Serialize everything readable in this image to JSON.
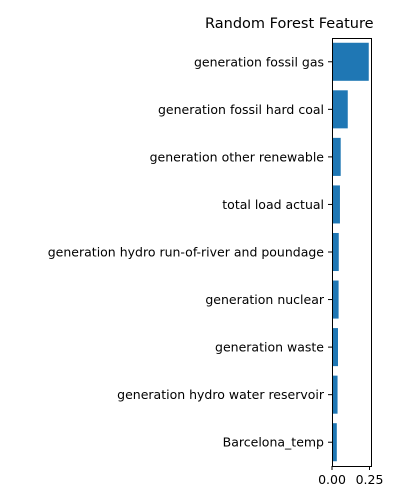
{
  "chart_data": {
    "type": "bar",
    "orientation": "horizontal",
    "title": "Random Forest Feature",
    "xlabel": "",
    "ylabel": "",
    "categories": [
      "generation fossil gas",
      "generation fossil hard coal",
      "generation other renewable",
      "total load actual",
      "generation hydro run-of-river and poundage",
      "generation nuclear",
      "generation waste",
      "generation hydro water reservoir",
      "Barcelona_temp"
    ],
    "values": [
      0.245,
      0.105,
      0.058,
      0.053,
      0.045,
      0.044,
      0.04,
      0.037,
      0.032
    ],
    "xlim": [
      0,
      0.26
    ],
    "xticks": [
      0.0,
      0.25
    ],
    "xtick_labels": [
      "0.00",
      "0.25"
    ],
    "grid": false,
    "bar_color": "#1f77b4"
  }
}
